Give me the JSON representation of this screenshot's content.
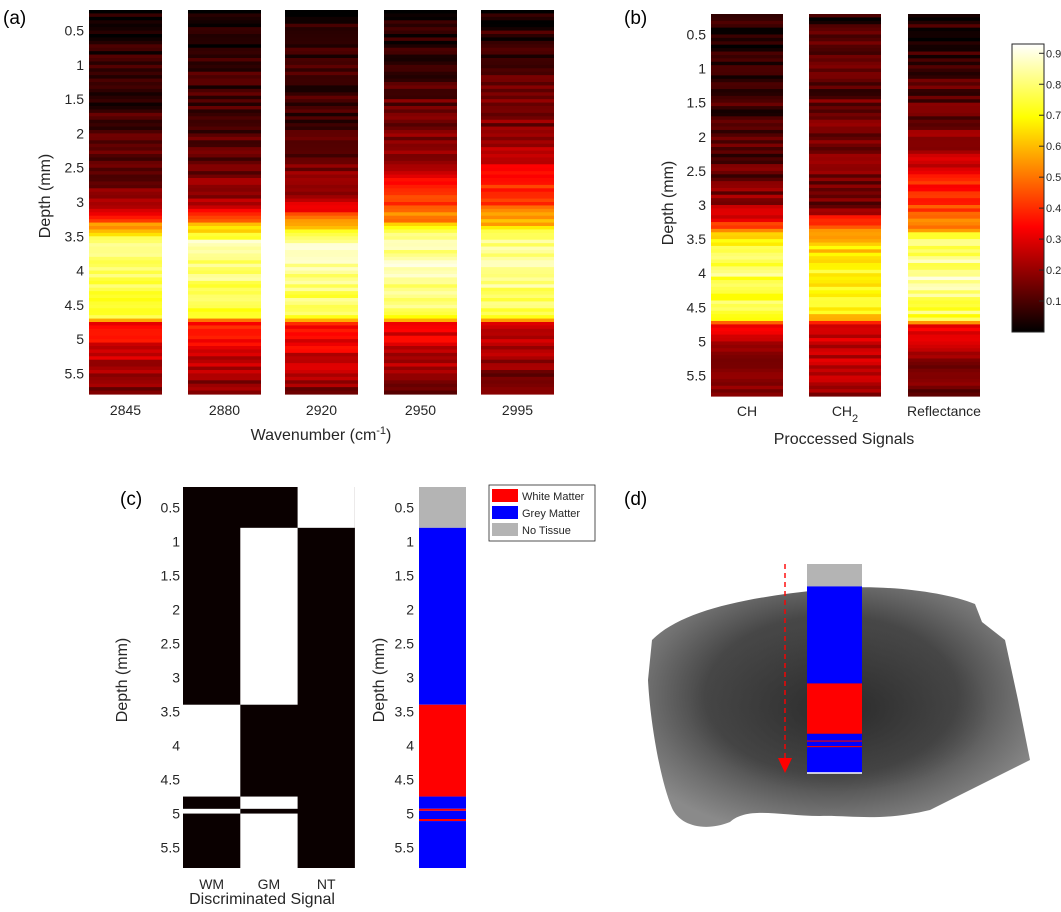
{
  "colors": {
    "white_matter": "#ff0000",
    "grey_matter": "#0000ff",
    "no_tissue": "#b4b4b4",
    "background": "#ffffff"
  },
  "chart_data": [
    {
      "id": "a",
      "panel_label": "(a)",
      "type": "heatmap",
      "colormap": "hot",
      "xlabel_main": "Wavenumber (cm",
      "xlabel_sup": "-1",
      "xlabel_end": ")",
      "ylabel": "Depth (mm)",
      "ylim": [
        0.2,
        5.8
      ],
      "yticks": [
        "0.5",
        "1",
        "1.5",
        "2",
        "2.5",
        "3",
        "3.5",
        "4",
        "4.5",
        "5",
        "5.5"
      ],
      "columns": [
        "2845",
        "2880",
        "2920",
        "2950",
        "2995"
      ],
      "profiles": [
        [
          [
            0.2,
            0.02
          ],
          [
            1.0,
            0.06
          ],
          [
            2.0,
            0.09
          ],
          [
            2.5,
            0.12
          ],
          [
            3.0,
            0.2
          ],
          [
            3.2,
            0.38
          ],
          [
            3.4,
            0.62
          ],
          [
            3.6,
            0.85
          ],
          [
            4.0,
            0.8
          ],
          [
            4.5,
            0.75
          ],
          [
            4.7,
            0.72
          ],
          [
            4.75,
            0.35
          ],
          [
            5.0,
            0.33
          ],
          [
            5.5,
            0.2
          ],
          [
            5.8,
            0.15
          ]
        ],
        [
          [
            0.2,
            0.02
          ],
          [
            1.0,
            0.07
          ],
          [
            2.0,
            0.1
          ],
          [
            2.5,
            0.14
          ],
          [
            3.0,
            0.22
          ],
          [
            3.2,
            0.4
          ],
          [
            3.4,
            0.64
          ],
          [
            3.6,
            0.86
          ],
          [
            4.0,
            0.8
          ],
          [
            4.5,
            0.76
          ],
          [
            4.7,
            0.72
          ],
          [
            4.75,
            0.36
          ],
          [
            5.0,
            0.34
          ],
          [
            5.5,
            0.22
          ],
          [
            5.8,
            0.16
          ]
        ],
        [
          [
            0.2,
            0.03
          ],
          [
            1.0,
            0.07
          ],
          [
            2.0,
            0.1
          ],
          [
            2.5,
            0.15
          ],
          [
            3.0,
            0.24
          ],
          [
            3.2,
            0.42
          ],
          [
            3.4,
            0.66
          ],
          [
            3.6,
            0.87
          ],
          [
            4.0,
            0.82
          ],
          [
            4.5,
            0.77
          ],
          [
            4.7,
            0.73
          ],
          [
            4.75,
            0.37
          ],
          [
            5.0,
            0.34
          ],
          [
            5.5,
            0.22
          ],
          [
            5.8,
            0.17
          ]
        ],
        [
          [
            0.2,
            0.02
          ],
          [
            1.0,
            0.09
          ],
          [
            2.0,
            0.16
          ],
          [
            2.5,
            0.24
          ],
          [
            2.7,
            0.36
          ],
          [
            3.0,
            0.42
          ],
          [
            3.3,
            0.55
          ],
          [
            3.5,
            0.82
          ],
          [
            4.0,
            0.86
          ],
          [
            4.5,
            0.79
          ],
          [
            4.7,
            0.74
          ],
          [
            4.75,
            0.33
          ],
          [
            5.0,
            0.3
          ],
          [
            5.5,
            0.2
          ],
          [
            5.8,
            0.14
          ]
        ],
        [
          [
            0.2,
            0.03
          ],
          [
            1.0,
            0.1
          ],
          [
            2.0,
            0.18
          ],
          [
            2.5,
            0.3
          ],
          [
            2.7,
            0.4
          ],
          [
            3.0,
            0.43
          ],
          [
            3.3,
            0.58
          ],
          [
            3.5,
            0.8
          ],
          [
            4.0,
            0.85
          ],
          [
            4.5,
            0.78
          ],
          [
            4.7,
            0.72
          ],
          [
            4.75,
            0.3
          ],
          [
            5.0,
            0.27
          ],
          [
            5.5,
            0.17
          ],
          [
            5.8,
            0.12
          ]
        ]
      ]
    },
    {
      "id": "b",
      "panel_label": "(b)",
      "type": "heatmap",
      "colormap": "hot",
      "xlabel": "Proccessed Signals",
      "ylabel": "Depth (mm)",
      "ylim": [
        0.2,
        5.8
      ],
      "yticks": [
        "0.5",
        "1",
        "1.5",
        "2",
        "2.5",
        "3",
        "3.5",
        "4",
        "4.5",
        "5",
        "5.5"
      ],
      "columns": [
        {
          "main": "CH",
          "sub": ""
        },
        {
          "main": "CH",
          "sub": "2"
        },
        {
          "main": "Reflectance",
          "sub": ""
        }
      ],
      "colorbar": {
        "ticks": [
          "0.1",
          "0.2",
          "0.3",
          "0.4",
          "0.5",
          "0.6",
          "0.7",
          "0.8",
          "0.9"
        ],
        "range": [
          0.0,
          0.93
        ]
      },
      "profiles": [
        [
          [
            0.2,
            0.03
          ],
          [
            1.0,
            0.06
          ],
          [
            2.0,
            0.09
          ],
          [
            2.5,
            0.12
          ],
          [
            3.0,
            0.2
          ],
          [
            3.3,
            0.4
          ],
          [
            3.5,
            0.7
          ],
          [
            4.0,
            0.78
          ],
          [
            4.5,
            0.74
          ],
          [
            4.7,
            0.7
          ],
          [
            4.75,
            0.3
          ],
          [
            5.0,
            0.27
          ],
          [
            5.5,
            0.18
          ],
          [
            5.8,
            0.14
          ]
        ],
        [
          [
            0.2,
            0.06
          ],
          [
            1.0,
            0.12
          ],
          [
            2.0,
            0.14
          ],
          [
            3.0,
            0.16
          ],
          [
            3.3,
            0.4
          ],
          [
            3.5,
            0.62
          ],
          [
            4.0,
            0.7
          ],
          [
            4.5,
            0.68
          ],
          [
            4.7,
            0.62
          ],
          [
            4.75,
            0.26
          ],
          [
            5.0,
            0.28
          ],
          [
            5.5,
            0.22
          ],
          [
            5.8,
            0.18
          ]
        ],
        [
          [
            0.2,
            0.03
          ],
          [
            1.0,
            0.1
          ],
          [
            2.0,
            0.16
          ],
          [
            2.5,
            0.3
          ],
          [
            2.7,
            0.38
          ],
          [
            3.0,
            0.4
          ],
          [
            3.3,
            0.52
          ],
          [
            3.5,
            0.75
          ],
          [
            4.0,
            0.84
          ],
          [
            4.5,
            0.78
          ],
          [
            4.7,
            0.74
          ],
          [
            4.75,
            0.3
          ],
          [
            5.0,
            0.26
          ],
          [
            5.5,
            0.18
          ],
          [
            5.8,
            0.13
          ]
        ]
      ]
    },
    {
      "id": "c",
      "panel_label": "(c)",
      "type": "heatmap",
      "xlabel": "Discriminated Signal",
      "ylabel": "Depth (mm)",
      "ylim": [
        0.2,
        5.8
      ],
      "yticks": [
        "0.5",
        "1",
        "1.5",
        "2",
        "2.5",
        "3",
        "3.5",
        "4",
        "4.5",
        "5",
        "5.5"
      ],
      "columns": [
        "WM",
        "GM",
        "NT"
      ],
      "segments": [
        {
          "from": 0.2,
          "to": 0.8,
          "class": "NT"
        },
        {
          "from": 0.8,
          "to": 3.4,
          "class": "GM"
        },
        {
          "from": 3.4,
          "to": 4.75,
          "class": "WM"
        },
        {
          "from": 4.75,
          "to": 4.93,
          "class": "GM"
        },
        {
          "from": 4.93,
          "to": 5.0,
          "class": "WM"
        },
        {
          "from": 5.0,
          "to": 5.8,
          "class": "GM"
        }
      ]
    },
    {
      "id": "c2",
      "type": "table",
      "ylabel": "Depth (mm)",
      "ylim": [
        0.2,
        5.8
      ],
      "yticks": [
        "0.5",
        "1",
        "1.5",
        "2",
        "2.5",
        "3",
        "3.5",
        "4",
        "4.5",
        "5",
        "5.5"
      ],
      "legend": {
        "placement": "top-right",
        "entries": [
          {
            "label": "White Matter",
            "class": "WM"
          },
          {
            "label": "Grey Matter",
            "class": "GM"
          },
          {
            "label": "No Tissue",
            "class": "NT"
          }
        ]
      },
      "segments": [
        {
          "from": 0.2,
          "to": 0.8,
          "class": "NT"
        },
        {
          "from": 0.8,
          "to": 3.4,
          "class": "GM"
        },
        {
          "from": 3.4,
          "to": 4.75,
          "class": "WM"
        },
        {
          "from": 4.75,
          "to": 4.93,
          "class": "GM"
        },
        {
          "from": 4.93,
          "to": 4.96,
          "class": "WM"
        },
        {
          "from": 4.96,
          "to": 5.08,
          "class": "GM"
        },
        {
          "from": 5.08,
          "to": 5.11,
          "class": "WM"
        },
        {
          "from": 5.11,
          "to": 5.8,
          "class": "GM"
        }
      ]
    }
  ],
  "panel_d": {
    "panel_label": "(d)",
    "strip_segments": [
      {
        "from": 0.2,
        "to": 0.8,
        "class": "NT"
      },
      {
        "from": 0.8,
        "to": 3.4,
        "class": "GM"
      },
      {
        "from": 3.4,
        "to": 4.75,
        "class": "WM"
      },
      {
        "from": 4.75,
        "to": 4.93,
        "class": "GM"
      },
      {
        "from": 4.93,
        "to": 4.96,
        "class": "WM"
      },
      {
        "from": 4.96,
        "to": 5.08,
        "class": "GM"
      },
      {
        "from": 5.08,
        "to": 5.11,
        "class": "WM"
      },
      {
        "from": 5.11,
        "to": 5.8,
        "class": "GM"
      }
    ]
  }
}
